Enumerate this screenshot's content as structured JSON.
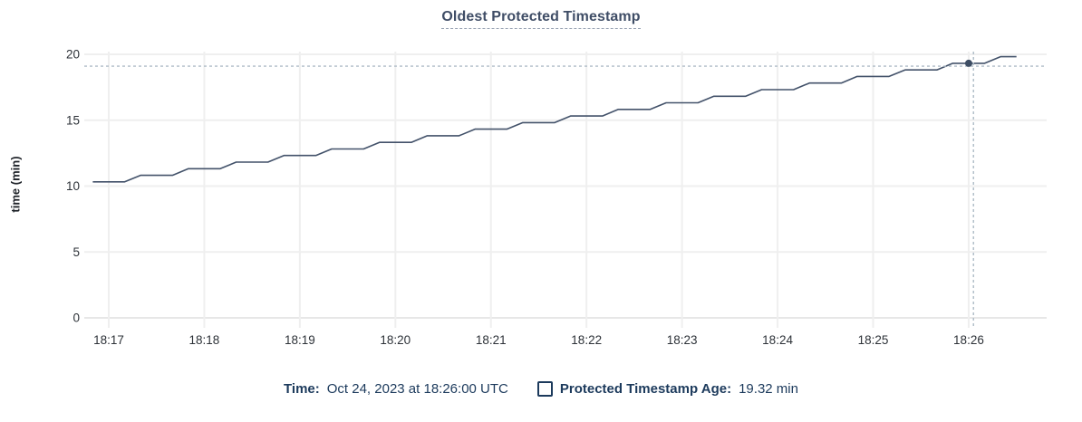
{
  "title": "Oldest Protected Timestamp",
  "colors": {
    "series_line": "#43526a",
    "hover_dot": "#3d4d64",
    "crosshair": "#aebbc6",
    "gridline": "#efefef",
    "axis_line": "#e7e7e7",
    "tick_label": "#2d3238",
    "title_text": "#3f4d66",
    "legend_text": "#1c3a5c"
  },
  "legend": {
    "time_label": "Time:",
    "time_value": "Oct 24, 2023 at 18:26:00 UTC",
    "series_swatch_icon": "hollow-square-swatch",
    "series_label": "Protected Timestamp Age:",
    "series_value": "19.32 min"
  },
  "chart_data": {
    "type": "line",
    "title": "Oldest Protected Timestamp",
    "xlabel": "",
    "ylabel": "time (min)",
    "ylim": [
      0,
      20
    ],
    "yticks": [
      0,
      5,
      10,
      15,
      20
    ],
    "xticks": [
      "18:17",
      "18:18",
      "18:19",
      "18:20",
      "18:21",
      "18:22",
      "18:23",
      "18:24",
      "18:25",
      "18:26"
    ],
    "xrange": [
      "18:16:50",
      "18:26:30"
    ],
    "grid": true,
    "legend_position": "bottom",
    "series": [
      {
        "name": "Protected Timestamp Age",
        "unit": "min",
        "points": [
          [
            "18:16:50",
            10.32
          ],
          [
            "18:17:10",
            10.32
          ],
          [
            "18:17:20",
            10.82
          ],
          [
            "18:17:40",
            10.82
          ],
          [
            "18:17:50",
            11.32
          ],
          [
            "18:18:10",
            11.32
          ],
          [
            "18:18:20",
            11.82
          ],
          [
            "18:18:40",
            11.82
          ],
          [
            "18:18:50",
            12.32
          ],
          [
            "18:19:10",
            12.32
          ],
          [
            "18:19:20",
            12.82
          ],
          [
            "18:19:40",
            12.82
          ],
          [
            "18:19:50",
            13.32
          ],
          [
            "18:20:10",
            13.32
          ],
          [
            "18:20:20",
            13.82
          ],
          [
            "18:20:40",
            13.82
          ],
          [
            "18:20:50",
            14.32
          ],
          [
            "18:21:10",
            14.32
          ],
          [
            "18:21:20",
            14.82
          ],
          [
            "18:21:40",
            14.82
          ],
          [
            "18:21:50",
            15.32
          ],
          [
            "18:22:10",
            15.32
          ],
          [
            "18:22:20",
            15.82
          ],
          [
            "18:22:40",
            15.82
          ],
          [
            "18:22:50",
            16.32
          ],
          [
            "18:23:10",
            16.32
          ],
          [
            "18:23:20",
            16.82
          ],
          [
            "18:23:40",
            16.82
          ],
          [
            "18:23:50",
            17.32
          ],
          [
            "18:24:10",
            17.32
          ],
          [
            "18:24:20",
            17.82
          ],
          [
            "18:24:40",
            17.82
          ],
          [
            "18:24:50",
            18.32
          ],
          [
            "18:25:10",
            18.32
          ],
          [
            "18:25:20",
            18.82
          ],
          [
            "18:25:40",
            18.82
          ],
          [
            "18:25:50",
            19.32
          ],
          [
            "18:26:10",
            19.32
          ],
          [
            "18:26:20",
            19.82
          ],
          [
            "18:26:30",
            19.82
          ]
        ]
      }
    ],
    "hover": {
      "point_time": "18:26:00",
      "point_value": 19.32,
      "cursor_time": "18:26:03",
      "cursor_value": 19.1
    }
  }
}
